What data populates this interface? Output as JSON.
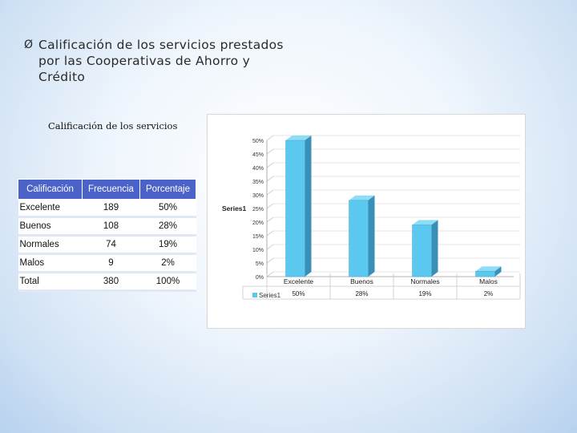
{
  "heading": {
    "bullet": "Ø",
    "line1": "Calificación de los servicios prestados",
    "line2": "por las Cooperativas de Ahorro y",
    "line3": "Crédito"
  },
  "section_title": "Calificación de los servicios",
  "table": {
    "headers": [
      "Calificación",
      "Frecuencia",
      "Porcentaje"
    ],
    "rows": [
      {
        "label": "Excelente",
        "frequency": "189",
        "percent": "50%"
      },
      {
        "label": "Buenos",
        "frequency": "108",
        "percent": "28%"
      },
      {
        "label": "Normales",
        "frequency": "74",
        "percent": "19%"
      },
      {
        "label": "Malos",
        "frequency": "9",
        "percent": "2%"
      },
      {
        "label": "Total",
        "frequency": "380",
        "percent": "100%"
      }
    ]
  },
  "chart_data": {
    "type": "bar",
    "categories": [
      "Excelente",
      "Buenos",
      "Normales",
      "Malos"
    ],
    "series": [
      {
        "name": "Series1",
        "values": [
          0.5,
          0.28,
          0.19,
          0.02
        ]
      }
    ],
    "yticks": [
      "0%",
      "5%",
      "10%",
      "15%",
      "20%",
      "25%",
      "30%",
      "35%",
      "40%",
      "45%",
      "50%"
    ],
    "ylim": [
      0,
      0.5
    ],
    "axis_title": "Series1",
    "legend_label": "Series1",
    "data_table": [
      "50%",
      "28%",
      "19%",
      "2%"
    ],
    "bar_color": "#5bc8ef",
    "bar_side_color": "#3a8fb6",
    "grid": true,
    "three_d": true
  }
}
